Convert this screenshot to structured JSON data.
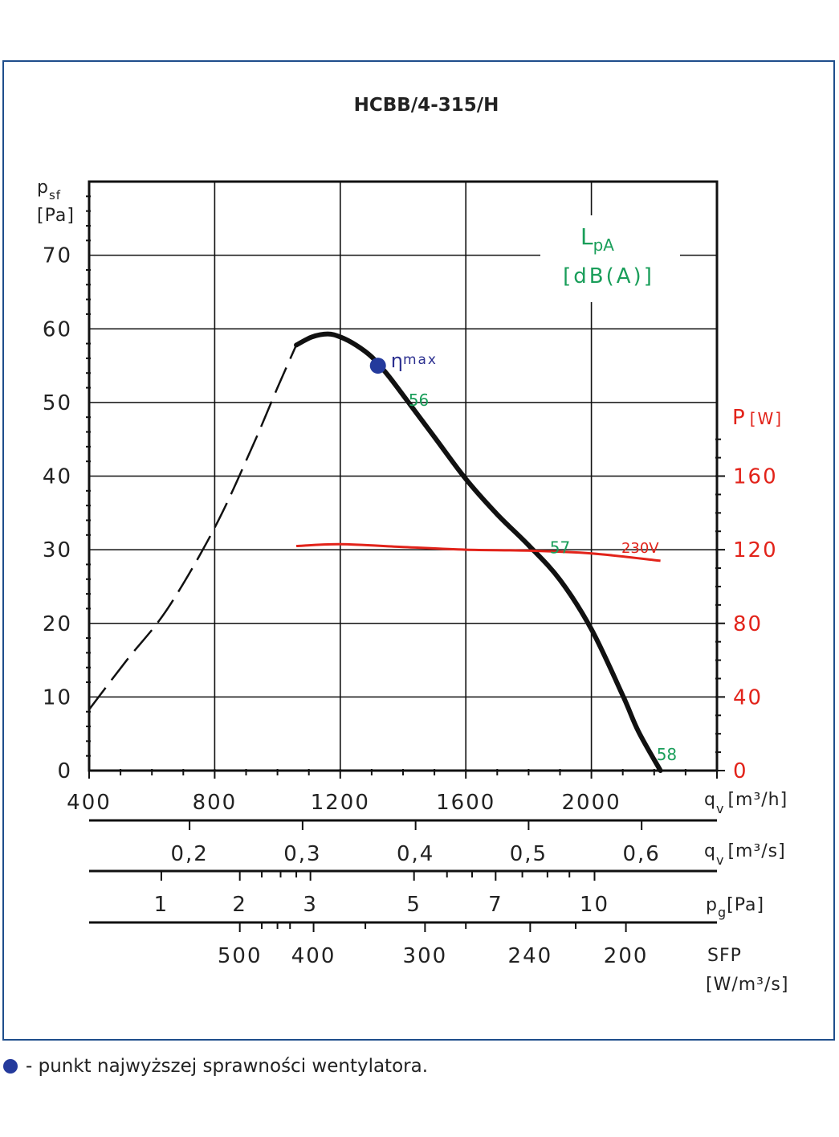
{
  "chart_data": {
    "type": "line",
    "title": "HCBB/4-315/H",
    "y_axis": {
      "label": "p",
      "label_sub": "sf",
      "unit": "[Pa]",
      "ylim": [
        0,
        80
      ],
      "ticks": [
        "0",
        "10",
        "20",
        "30",
        "40",
        "50",
        "60",
        "70"
      ]
    },
    "x_axis": {
      "label": "q",
      "label_sub": "v",
      "unit": "[m³/h]",
      "xlim": [
        400,
        2400
      ],
      "ticks": [
        "400",
        "800",
        "1200",
        "1600",
        "2000"
      ]
    },
    "y2_axis": {
      "label": "P",
      "unit": "[W]",
      "ticks": [
        "0",
        "40",
        "80",
        "120",
        "160"
      ]
    },
    "scale_m3s": {
      "label": "q",
      "label_sub": "v",
      "unit": "[m³/s]",
      "ticks": [
        {
          "t": "0,2",
          "x": 720
        },
        {
          "t": "0,3",
          "x": 1080
        },
        {
          "t": "0,4",
          "x": 1440
        },
        {
          "t": "0,5",
          "x": 1800
        },
        {
          "t": "0,6",
          "x": 2160
        }
      ]
    },
    "scale_pg": {
      "label": "p",
      "label_sub": "g",
      "unit": "[Pa]",
      "ticks": [
        {
          "t": "1",
          "x": 630
        },
        {
          "t": "2",
          "x": 880
        },
        {
          "t": "3",
          "x": 1105
        },
        {
          "t": "5",
          "x": 1435
        },
        {
          "t": "7",
          "x": 1695
        },
        {
          "t": "10",
          "x": 2010
        }
      ]
    },
    "scale_sfp": {
      "label": "SFP",
      "unit": "[W/m³/s]",
      "ticks": [
        {
          "t": "500",
          "x": 880
        },
        {
          "t": "400",
          "x": 1115
        },
        {
          "t": "300",
          "x": 1470
        },
        {
          "t": "240",
          "x": 1805
        },
        {
          "t": "200",
          "x": 2110
        }
      ]
    },
    "series": [
      {
        "style": "dashed",
        "x": [
          400,
          520,
          650,
          800,
          920,
          1000,
          1060
        ],
        "y": [
          8.3,
          15,
          22,
          33,
          44,
          52,
          57.8
        ]
      },
      {
        "style": "solid",
        "x": [
          1060,
          1110,
          1160,
          1200,
          1250,
          1300,
          1350,
          1400,
          1500,
          1600,
          1700,
          1800,
          1900,
          2000,
          2100,
          2150,
          2220
        ],
        "y": [
          57.8,
          58.9,
          59.3,
          58.9,
          57.8,
          56.2,
          53.8,
          51,
          45.3,
          39.6,
          34.8,
          30.6,
          25.9,
          19.2,
          10.2,
          5.3,
          0
        ]
      },
      {
        "name": "230V",
        "axis": "right",
        "color": "#e2231a",
        "x": [
          1060,
          1200,
          1400,
          1600,
          1800,
          2000,
          2220
        ],
        "y": [
          122,
          123,
          121.5,
          120,
          119.5,
          118,
          114
        ]
      }
    ],
    "eta_max": {
      "x": 1320,
      "y": 55,
      "label": "η",
      "label_sub": "max"
    },
    "lpa_title": {
      "main": "L",
      "sub": "pA",
      "unit": "[dB(A)]"
    },
    "lpa_labels": [
      {
        "t": "56",
        "x": 1450,
        "y": 50.3
      },
      {
        "t": "57",
        "x": 1900,
        "y": 30.3
      },
      {
        "t": "58",
        "x": 2240,
        "y": 2.2
      }
    ]
  },
  "legend_text": "- punkt najwyższej sprawności wentylatora."
}
